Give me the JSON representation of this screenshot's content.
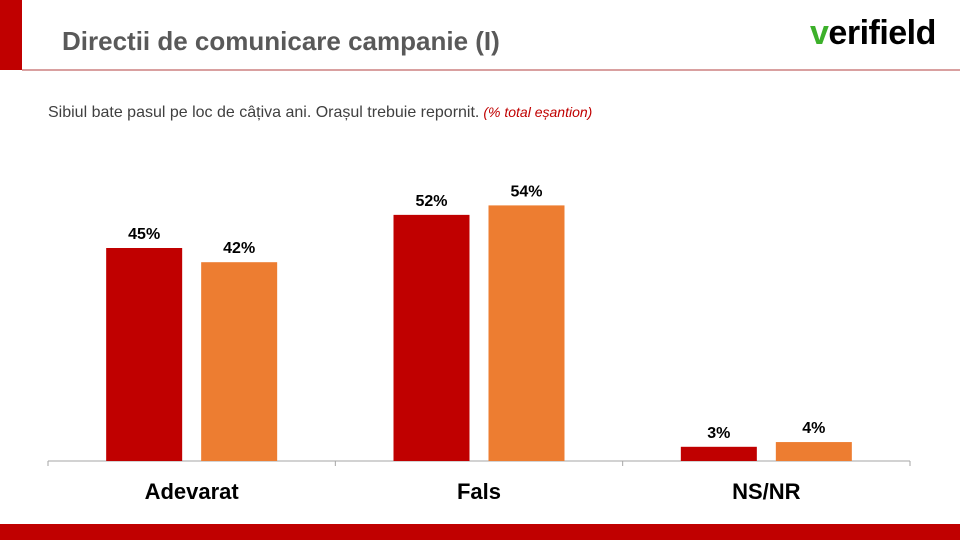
{
  "slide": {
    "title": "Directii de comunicare campanie (I)",
    "logo_mark": "v",
    "logo_rest": "erifield",
    "subtitle": "Sibiul bate pasul pe loc de câțiva ani. Orașul trebuie repornit.",
    "subtitle_note": "(% total eșantion)",
    "colors": {
      "accent": "#c00000",
      "series_1": "#c00000",
      "series_2": "#ed7d31",
      "logo_mark": "#3cb02a"
    }
  },
  "chart_data": {
    "type": "bar",
    "categories": [
      "Adevarat",
      "Fals",
      "NS/NR"
    ],
    "series": [
      {
        "values": [
          45,
          52,
          3
        ],
        "labels": [
          "45%",
          "52%",
          "3%"
        ],
        "color": "#c00000"
      },
      {
        "values": [
          42,
          54,
          4
        ],
        "labels": [
          "42%",
          "54%",
          "4%"
        ],
        "color": "#ed7d31"
      }
    ],
    "ylim": [
      0,
      60
    ],
    "grid": false,
    "legend": "none"
  }
}
